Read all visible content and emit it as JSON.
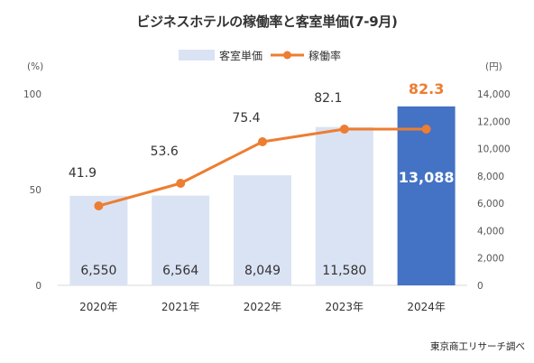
{
  "chart_data": {
    "type": "bar+line",
    "title": "ビジネスホテルの稼働率と客室単価(7-9月)",
    "categories": [
      "2020年",
      "2021年",
      "2022年",
      "2023年",
      "2024年"
    ],
    "series": [
      {
        "name": "客室単価",
        "kind": "bar",
        "axis": "right",
        "values": [
          6550,
          6564,
          8049,
          11580,
          13088
        ],
        "value_labels": [
          "6,550",
          "6,564",
          "8,049",
          "11,580",
          "13,088"
        ],
        "color": "#dae3f3",
        "highlight_color": "#4472c4"
      },
      {
        "name": "稼働率",
        "kind": "line",
        "axis": "left",
        "values": [
          41.9,
          53.6,
          75.4,
          82.1,
          82.3
        ],
        "value_labels": [
          "41.9",
          "53.6",
          "75.4",
          "82.1",
          "82.3"
        ],
        "color": "#ed7d31"
      }
    ],
    "left_axis": {
      "unit": "(%)",
      "ylim": [
        0,
        100
      ],
      "ticks": [
        "0",
        "50",
        "100"
      ]
    },
    "right_axis": {
      "unit": "(円)",
      "ylim": [
        0,
        14000
      ],
      "ticks": [
        "0",
        "2,000",
        "4,000",
        "6,000",
        "8,000",
        "10,000",
        "12,000",
        "14,000"
      ]
    },
    "legend_position": "top-center",
    "grid": false
  },
  "source": "東京商工リサーチ調べ"
}
